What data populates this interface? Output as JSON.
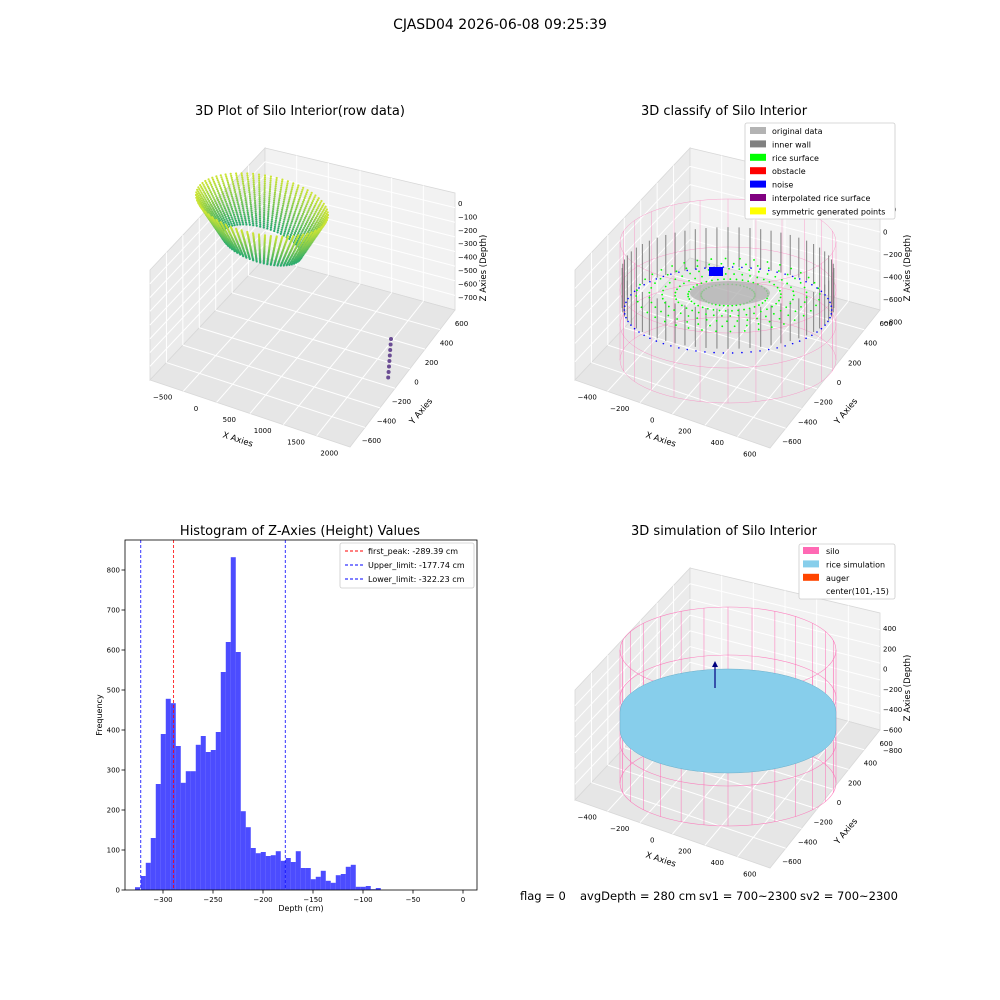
{
  "figure": {
    "suptitle": "CJASD04 2026-06-08 09:25:39",
    "footer": {
      "flag": "flag = 0",
      "avg_depth": "avgDepth = 280 cm",
      "sv1": "sv1 = 700~2300",
      "sv2": "sv2 = 700~2300"
    }
  },
  "colors": {
    "original": "#b3b3b3",
    "inner_wall": "#808080",
    "rice_surface": "#00ff00",
    "obstacle": "#ff0000",
    "noise": "#0000ff",
    "interpolated": "#800080",
    "symmetric": "#ffff00",
    "silo": "#ff69b4",
    "rice_sim": "#87ceeb",
    "auger": "#ff4500",
    "hist": "#0000ff",
    "peak_line": "#ff0000",
    "limit_line": "#0000ff"
  },
  "plot1": {
    "title": "3D Plot of Silo Interior(row data)",
    "xlabel": "X Axies",
    "ylabel": "Y Axies",
    "zlabel": "Z Axies (Depth)",
    "xticks": [
      "−500",
      "0",
      "500",
      "1000",
      "1500",
      "2000"
    ],
    "yticks": [
      "−600",
      "−400",
      "−200",
      "0",
      "200",
      "400",
      "600"
    ],
    "zticks": [
      "0",
      "−100",
      "−200",
      "−300",
      "−400",
      "−500",
      "−600",
      "−700"
    ]
  },
  "plot2": {
    "title": "3D classify of Silo Interior",
    "xlabel": "X Axies",
    "ylabel": "Y Axies",
    "zlabel": "Z Axies (Depth)",
    "xticks": [
      "−400",
      "−200",
      "0",
      "200",
      "400",
      "600"
    ],
    "yticks": [
      "−600",
      "−400",
      "−200",
      "0",
      "200",
      "400",
      "600"
    ],
    "zticks": [
      "200",
      "0",
      "−200",
      "−400",
      "−600",
      "−800"
    ],
    "legend": [
      {
        "label": "original data",
        "color": "#b3b3b3"
      },
      {
        "label": "inner wall",
        "color": "#808080"
      },
      {
        "label": "rice surface",
        "color": "#00ff00"
      },
      {
        "label": "obstacle",
        "color": "#ff0000"
      },
      {
        "label": "noise",
        "color": "#0000ff"
      },
      {
        "label": "interpolated rice surface",
        "color": "#800080"
      },
      {
        "label": "symmetric generated points",
        "color": "#ffff00"
      }
    ]
  },
  "plot4": {
    "title": "3D simulation of Silo Interior",
    "xlabel": "X Axies",
    "ylabel": "Y Axies",
    "zlabel": "Z Axies (Depth)",
    "xticks": [
      "−400",
      "−200",
      "0",
      "200",
      "400",
      "600"
    ],
    "yticks": [
      "−600",
      "−400",
      "−200",
      "0",
      "200",
      "400",
      "600"
    ],
    "zticks": [
      "400",
      "200",
      "0",
      "−200",
      "−400",
      "−600",
      "−800"
    ],
    "legend": [
      {
        "label": "silo",
        "color": "#ff69b4"
      },
      {
        "label": "rice simulation",
        "color": "#87ceeb"
      },
      {
        "label": "auger",
        "color": "#ff4500"
      },
      {
        "label": "center(101,-15)",
        "color": ""
      }
    ]
  },
  "chart_data": [
    {
      "type": "bar",
      "title": "Histogram of Z-Axies (Height) Values",
      "xlabel": "Depth (cm)",
      "ylabel": "Frequency",
      "xlim": [
        -338,
        14
      ],
      "ylim": [
        0,
        875
      ],
      "xticks": [
        -300,
        -250,
        -200,
        -150,
        -100,
        -50,
        0
      ],
      "xtick_labels": [
        "−300",
        "−250",
        "−200",
        "−150",
        "−100",
        "−50",
        "0"
      ],
      "yticks": [
        0,
        100,
        200,
        300,
        400,
        500,
        600,
        700,
        800
      ],
      "bin_start": -322.23,
      "bin_width": 5,
      "values": [
        35,
        68,
        130,
        265,
        390,
        478,
        467,
        360,
        268,
        297,
        297,
        363,
        385,
        345,
        350,
        395,
        545,
        620,
        832,
        595,
        197,
        157,
        105,
        92,
        95,
        85,
        87,
        97,
        73,
        80,
        70,
        97,
        55,
        55,
        27,
        33,
        48,
        23,
        18,
        37,
        40,
        58,
        63,
        8,
        8,
        10,
        2,
        5
      ],
      "extra_bars": [
        {
          "x0": -328.0,
          "value": 7
        }
      ],
      "vlines": [
        {
          "x": -289.39,
          "label": "first_peak: -289.39 cm",
          "color": "#ff0000"
        },
        {
          "x": -177.74,
          "label": "Upper_limit: -177.74 cm",
          "color": "#0000ff"
        },
        {
          "x": -322.23,
          "label": "Lower_limit: -322.23 cm",
          "color": "#0000ff"
        }
      ],
      "legend_position": "upper right",
      "grid": false
    }
  ]
}
